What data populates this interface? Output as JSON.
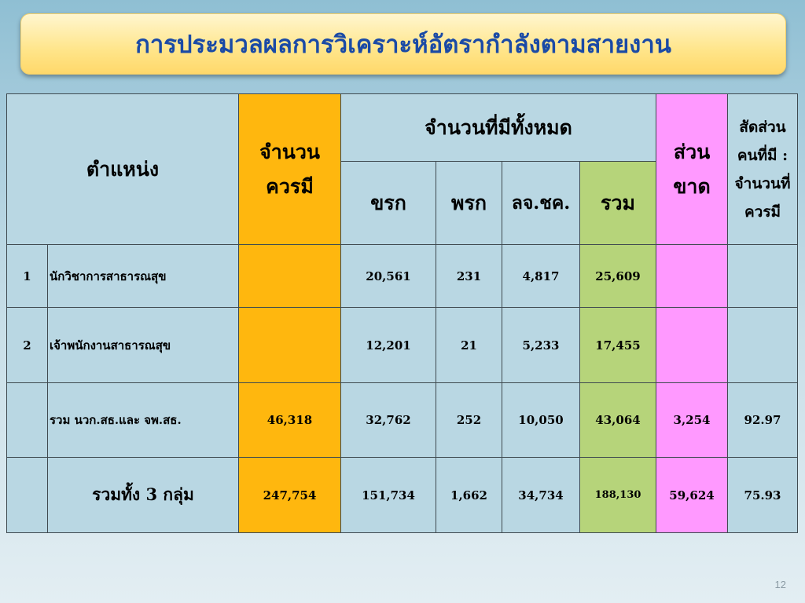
{
  "title": "การประมวลผลการวิเคราะห์อัตรากำลังตามสายงาน",
  "slide_number": "12",
  "headers": {
    "position": "ตำแหน่ง",
    "should_have": "จำนวนควรมี",
    "total_existing": "จำนวนที่มีทั้งหมด",
    "shortage": "ส่วนขาด",
    "ratio": "สัดส่วนคนที่มี : จำนวนที่ควรมี",
    "col_civil": "ขรก",
    "col_emp": "พรก",
    "col_hired": "ลจ.ชค.",
    "col_total": "รวม"
  },
  "rows": [
    {
      "no": "1",
      "label": "นักวิชาการสาธารณสุข",
      "should": "",
      "civil": "20,561",
      "emp": "231",
      "hired": "4,817",
      "total": "25,609",
      "shortage": "",
      "ratio": ""
    },
    {
      "no": "2",
      "label": "เจ้าพนักงานสาธารณสุข",
      "should": "",
      "civil": "12,201",
      "emp": "21",
      "hired": "5,233",
      "total": "17,455",
      "shortage": "",
      "ratio": ""
    },
    {
      "no": "",
      "label": "รวม นวก.สธ.และ จพ.สธ.",
      "should": "46,318",
      "civil": "32,762",
      "emp": "252",
      "hired": "10,050",
      "total": "43,064",
      "shortage": "3,254",
      "ratio": "92.97"
    },
    {
      "no": "",
      "label": "รวมทั้ง 3 กลุ่ม",
      "should": "247,754",
      "civil": "151,734",
      "emp": "1,662",
      "hired": "34,734",
      "total": "188,130",
      "shortage": "59,624",
      "ratio": "75.93"
    }
  ]
}
